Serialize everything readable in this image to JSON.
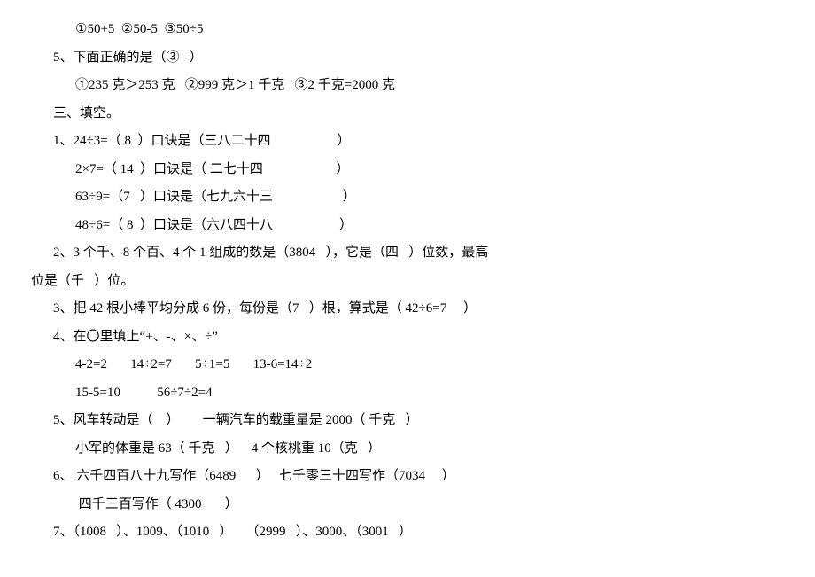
{
  "lines": [
    {
      "cls": "indent1",
      "text": "①50+5  ②50-5  ③50÷5"
    },
    {
      "cls": "indent2",
      "text": "5、下面正确的是（③   ）"
    },
    {
      "cls": "indent1",
      "text": "①235 克＞253 克   ②999 克＞1 千克   ③2 千克=2000 克"
    },
    {
      "cls": "indent2",
      "text": "三、填空。"
    },
    {
      "cls": "indent2",
      "text": "1、24÷3=（ 8  ）口诀是（三八二十四                    ）"
    },
    {
      "cls": "indent1",
      "text": "2×7=（ 14  ）口诀是（ 二七十四                      ）"
    },
    {
      "cls": "indent1",
      "text": "63÷9=（7   ）口诀是（七九六十三                     ）"
    },
    {
      "cls": "indent1",
      "text": "48÷6=（ 8  ）口诀是（六八四十八                    ）"
    },
    {
      "cls": "indent2",
      "text": "2、3 个千、8 个百、4 个 1 组成的数是（3804   ），它是（四   ）位数，最高"
    },
    {
      "cls": "indent3",
      "text": "位是（千   ）位。"
    },
    {
      "cls": "indent2",
      "text": "3、把 42 根小棒平均分成 6 份，每份是（7   ）根，算式是（ 42÷6=7     ）"
    },
    {
      "cls": "indent2",
      "text": "4、在〇里填上“+、-、×、÷”"
    },
    {
      "cls": "indent1",
      "text": "4-2=2       14÷2=7       5÷1=5       13-6=14÷2"
    },
    {
      "cls": "indent1",
      "text": "15-5=10           56÷7÷2=4"
    },
    {
      "cls": "indent2",
      "text": "5、风车转动是（    ）       一辆汽车的载重量是 2000（ 千克   ）"
    },
    {
      "cls": "indent1",
      "text": "小军的体重是 63（ 千克   ）    4 个核桃重 10（克   ）"
    },
    {
      "cls": "indent2",
      "text": "6、 六千四百八十九写作（6489      ）   七千零三十四写作（7034     ）"
    },
    {
      "cls": "indent1",
      "text": " 四千三百写作（ 4300       ）"
    },
    {
      "cls": "indent2",
      "text": "7、（1008   ）、1009、（1010   ）    （2999   ）、3000、（3001   ）"
    }
  ]
}
